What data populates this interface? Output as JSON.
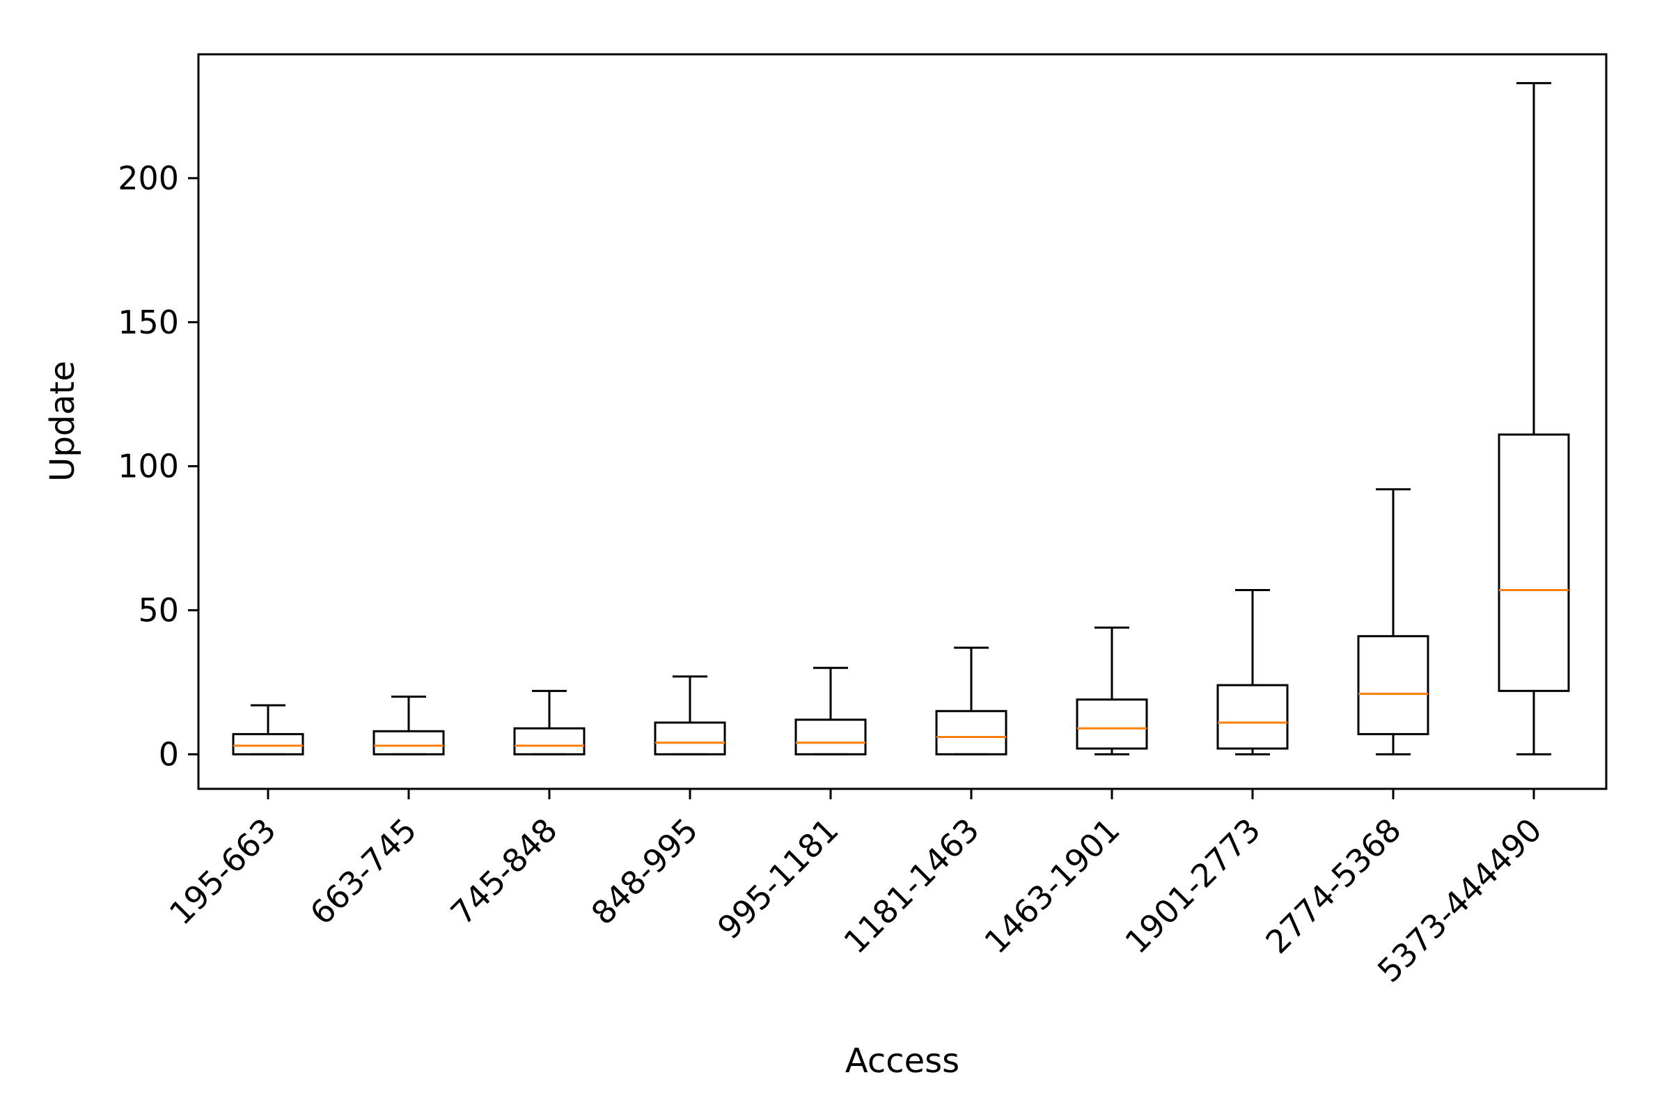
{
  "chart_data": {
    "type": "box",
    "xlabel": "Access",
    "ylabel": "Update",
    "ylim": [
      -12,
      243
    ],
    "yticks": [
      0,
      50,
      100,
      150,
      200
    ],
    "grid": false,
    "legend": "none",
    "colors": {
      "box": "#000000",
      "median": "#ff7f0e"
    },
    "categories": [
      "195-663",
      "663-745",
      "745-848",
      "848-995",
      "995-1181",
      "1181-1463",
      "1463-1901",
      "1901-2773",
      "2774-5368",
      "5373-444490"
    ],
    "boxes": [
      {
        "whisker_low": 0,
        "q1": 0,
        "median": 3,
        "q3": 7,
        "whisker_high": 17
      },
      {
        "whisker_low": 0,
        "q1": 0,
        "median": 3,
        "q3": 8,
        "whisker_high": 20
      },
      {
        "whisker_low": 0,
        "q1": 0,
        "median": 3,
        "q3": 9,
        "whisker_high": 22
      },
      {
        "whisker_low": 0,
        "q1": 0,
        "median": 4,
        "q3": 11,
        "whisker_high": 27
      },
      {
        "whisker_low": 0,
        "q1": 0,
        "median": 4,
        "q3": 12,
        "whisker_high": 30
      },
      {
        "whisker_low": 0,
        "q1": 0,
        "median": 6,
        "q3": 15,
        "whisker_high": 37
      },
      {
        "whisker_low": 0,
        "q1": 2,
        "median": 9,
        "q3": 19,
        "whisker_high": 44
      },
      {
        "whisker_low": 0,
        "q1": 2,
        "median": 11,
        "q3": 24,
        "whisker_high": 57
      },
      {
        "whisker_low": 0,
        "q1": 7,
        "median": 21,
        "q3": 41,
        "whisker_high": 92
      },
      {
        "whisker_low": 0,
        "q1": 22,
        "median": 57,
        "q3": 111,
        "whisker_high": 233
      }
    ]
  }
}
